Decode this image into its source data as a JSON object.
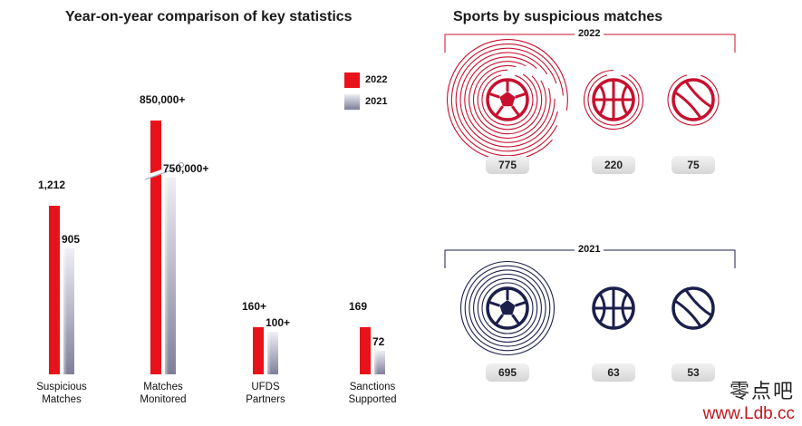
{
  "left_chart": {
    "title": "Year-on-year comparison of key statistics",
    "legend": [
      {
        "label": "2022",
        "color": "#e8121b"
      },
      {
        "label": "2021",
        "color": "#b8b8cc"
      }
    ]
  },
  "chart_data": [
    {
      "type": "bar",
      "title": "Year-on-year comparison of key statistics",
      "categories": [
        "Suspicious Matches",
        "Matches Monitored",
        "UFDS Partners",
        "Sanctions Supported"
      ],
      "series": [
        {
          "name": "2022",
          "values": [
            1212,
            850000,
            160,
            169
          ],
          "labels": [
            "1,212",
            "850,000+",
            "160+",
            "169"
          ]
        },
        {
          "name": "2021",
          "values": [
            905,
            750000,
            100,
            72
          ],
          "labels": [
            "905",
            "750,000+",
            "100+",
            "72"
          ]
        }
      ],
      "legend_position": "top-right",
      "grid": false,
      "note": "broken-axis bars"
    },
    {
      "type": "table",
      "title": "Sports by suspicious matches",
      "groups": [
        {
          "year": "2022",
          "items": [
            {
              "sport": "football",
              "value": "775"
            },
            {
              "sport": "basketball",
              "value": "220"
            },
            {
              "sport": "tennis",
              "value": "75"
            }
          ]
        },
        {
          "year": "2021",
          "items": [
            {
              "sport": "football",
              "value": "695"
            },
            {
              "sport": "basketball",
              "value": "63"
            },
            {
              "sport": "tennis",
              "value": "53"
            }
          ]
        }
      ]
    }
  ],
  "right_panel": {
    "title": "Sports by suspicious matches",
    "colors": {
      "2022": "#c8102e",
      "2021": "#1b1f4b"
    }
  },
  "watermark": {
    "cn": "零点吧",
    "url": "www.Ldb.cc"
  }
}
